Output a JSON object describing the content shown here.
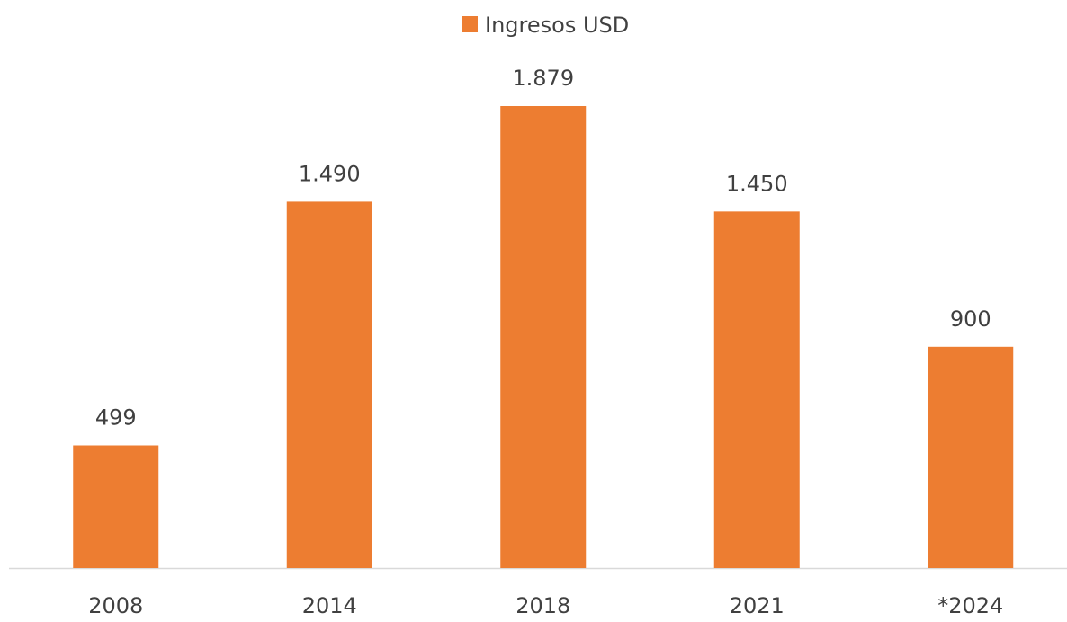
{
  "chart_data": {
    "type": "bar",
    "legend": "Ingresos USD",
    "categories": [
      "2008",
      "2014",
      "2018",
      "2021",
      "*2024"
    ],
    "values": [
      499,
      1490,
      1879,
      1450,
      900
    ],
    "value_labels": [
      "499",
      "1.490",
      "1.879",
      "1.450",
      "900"
    ],
    "color": "#ed7d31"
  }
}
